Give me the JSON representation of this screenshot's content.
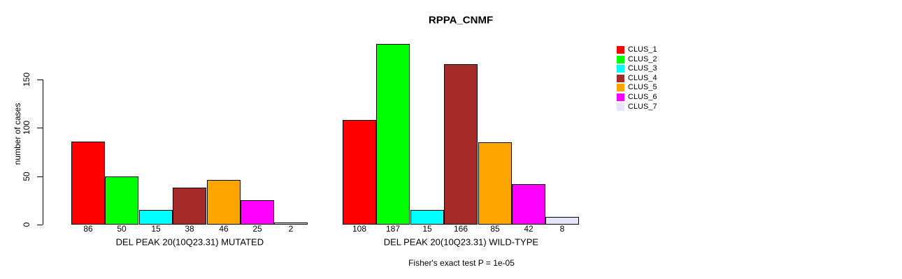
{
  "chart_data": {
    "type": "bar",
    "title": "RPPA_CNMF",
    "ylabel": "number of cases",
    "yticks": [
      0,
      50,
      100,
      150
    ],
    "ylim": [
      0,
      195
    ],
    "grid": false,
    "legend_position": "right",
    "categories": [
      "DEL PEAK 20(10Q23.31) MUTATED",
      "DEL PEAK 20(10Q23.31) WILD-TYPE"
    ],
    "series": [
      {
        "name": "CLUS_1",
        "color": "#FF0000",
        "values": [
          86,
          108
        ]
      },
      {
        "name": "CLUS_2",
        "color": "#00FF00",
        "values": [
          50,
          187
        ]
      },
      {
        "name": "CLUS_3",
        "color": "#00FFFF",
        "values": [
          15,
          15
        ]
      },
      {
        "name": "CLUS_4",
        "color": "#A52A2A",
        "values": [
          38,
          166
        ]
      },
      {
        "name": "CLUS_5",
        "color": "#FFA500",
        "values": [
          46,
          85
        ]
      },
      {
        "name": "CLUS_6",
        "color": "#FF00FF",
        "values": [
          25,
          42
        ]
      },
      {
        "name": "CLUS_7",
        "color": "#E6E6FA",
        "values": [
          2,
          8
        ]
      }
    ],
    "annotation": "Fisher's exact test P = 1e-05",
    "text_color": "#000000",
    "background_color": "#FFFFFF"
  }
}
